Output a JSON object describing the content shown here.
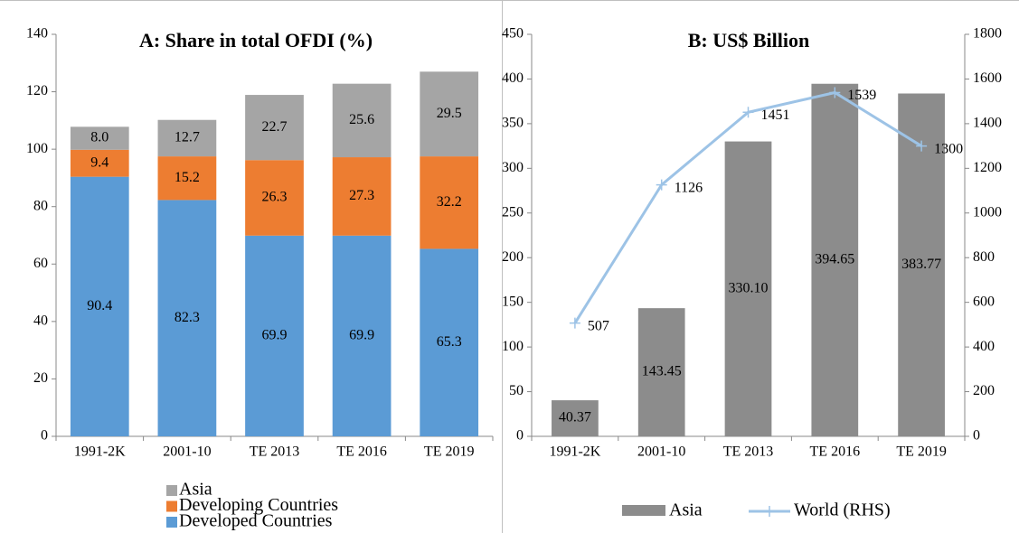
{
  "chart_data": [
    {
      "type": "stacked_bar",
      "title": "A: Share in total OFDI (%)",
      "categories": [
        "1991-2K",
        "2001-10",
        "TE 2013",
        "TE 2016",
        "TE 2019"
      ],
      "series": [
        {
          "name": "Developed Countries",
          "color": "#5b9bd5",
          "values": [
            90.4,
            82.3,
            69.9,
            69.9,
            65.3
          ]
        },
        {
          "name": "Developing Countries",
          "color": "#ed7d31",
          "values": [
            9.4,
            15.2,
            26.3,
            27.3,
            32.2
          ]
        },
        {
          "name": "Asia",
          "color": "#a5a5a5",
          "values": [
            8.0,
            12.7,
            22.7,
            25.6,
            29.5
          ],
          "value_labels": [
            "8.0",
            "12.7",
            "22.7",
            "25.6",
            "29.5"
          ]
        }
      ],
      "ylim": [
        0,
        140
      ],
      "yticks": [
        0,
        20,
        40,
        60,
        80,
        100,
        120,
        140
      ]
    },
    {
      "type": "bar_line",
      "title": "B: US$ Billion",
      "categories": [
        "1991-2K",
        "2001-10",
        "TE 2013",
        "TE 2016",
        "TE 2019"
      ],
      "series": [
        {
          "name": "Asia",
          "type": "bar",
          "color": "#8c8c8c",
          "values": [
            40.37,
            143.45,
            330.1,
            394.65,
            383.77
          ],
          "value_labels": [
            "40.37",
            "143.45",
            "330.10",
            "394.65",
            "383.77"
          ]
        },
        {
          "name": "World (RHS)",
          "type": "line",
          "axis": "y2",
          "color": "#9dc3e6",
          "values": [
            507,
            1126,
            1451,
            1539,
            1300
          ]
        }
      ],
      "ylim": [
        0,
        450
      ],
      "yticks": [
        0,
        50,
        100,
        150,
        200,
        250,
        300,
        350,
        400,
        450
      ],
      "y2lim": [
        0,
        1800
      ],
      "y2ticks": [
        0,
        200,
        400,
        600,
        800,
        1000,
        1200,
        1400,
        1600,
        1800
      ]
    }
  ]
}
